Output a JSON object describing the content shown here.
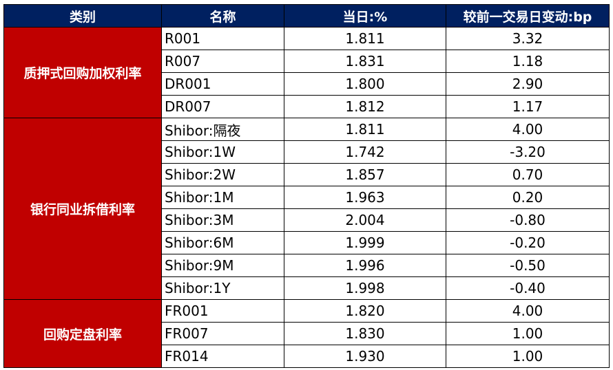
{
  "headers": [
    "类别",
    "名称",
    "当日:%",
    "较前一交易日变动:bp"
  ],
  "colors": {
    "header_bg": "#002060",
    "category_bg": "#C00000"
  },
  "groups": [
    {
      "category": "质押式回购加权利率",
      "rows": [
        {
          "name": "R001",
          "value": "1.811",
          "change": "3.32"
        },
        {
          "name": "R007",
          "value": "1.831",
          "change": "1.18"
        },
        {
          "name": "DR001",
          "value": "1.800",
          "change": "2.90"
        },
        {
          "name": "DR007",
          "value": "1.812",
          "change": "1.17"
        }
      ]
    },
    {
      "category": "银行同业拆借利率",
      "rows": [
        {
          "name": "Shibor:隔夜",
          "value": "1.811",
          "change": "4.00"
        },
        {
          "name": "Shibor:1W",
          "value": "1.742",
          "change": "-3.20"
        },
        {
          "name": "Shibor:2W",
          "value": "1.857",
          "change": "0.70"
        },
        {
          "name": "Shibor:1M",
          "value": "1.963",
          "change": "0.20"
        },
        {
          "name": "Shibor:3M",
          "value": "2.004",
          "change": "-0.80"
        },
        {
          "name": "Shibor:6M",
          "value": "1.999",
          "change": "-0.20"
        },
        {
          "name": "Shibor:9M",
          "value": "1.996",
          "change": "-0.50"
        },
        {
          "name": "Shibor:1Y",
          "value": "1.998",
          "change": "-0.40"
        }
      ]
    },
    {
      "category": "回购定盘利率",
      "rows": [
        {
          "name": "FR001",
          "value": "1.820",
          "change": "4.00"
        },
        {
          "name": "FR007",
          "value": "1.830",
          "change": "1.00"
        },
        {
          "name": "FR014",
          "value": "1.930",
          "change": "1.00"
        }
      ]
    }
  ]
}
